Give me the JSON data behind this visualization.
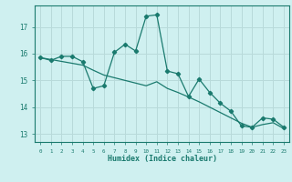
{
  "xlabel": "Humidex (Indice chaleur)",
  "bg_color": "#cff0f0",
  "grid_color": "#b8dada",
  "line_color": "#1a7a6e",
  "xlim": [
    -0.5,
    23.5
  ],
  "ylim": [
    12.7,
    17.8
  ],
  "x_ticks": [
    0,
    1,
    2,
    3,
    4,
    5,
    6,
    7,
    8,
    9,
    10,
    11,
    12,
    13,
    14,
    15,
    16,
    17,
    18,
    19,
    20,
    21,
    22,
    23
  ],
  "y_ticks": [
    13,
    14,
    15,
    16,
    17
  ],
  "line1_x": [
    0,
    1,
    2,
    3,
    4,
    5,
    6,
    7,
    8,
    9,
    10,
    11,
    12,
    13,
    14,
    15,
    16,
    17,
    18,
    19,
    20,
    21,
    22,
    23
  ],
  "line1_y": [
    15.85,
    15.75,
    15.9,
    15.9,
    15.7,
    14.7,
    14.8,
    16.05,
    16.35,
    16.1,
    17.4,
    17.45,
    15.35,
    15.25,
    14.4,
    15.05,
    14.55,
    14.15,
    13.85,
    13.3,
    13.25,
    13.6,
    13.55,
    13.25
  ],
  "line2_x": [
    0,
    1,
    2,
    3,
    4,
    5,
    6,
    7,
    8,
    9,
    10,
    11,
    12,
    13,
    14,
    15,
    16,
    17,
    18,
    19,
    20,
    21,
    22,
    23
  ],
  "line2_y": [
    15.85,
    15.78,
    15.71,
    15.64,
    15.57,
    15.38,
    15.2,
    15.1,
    15.0,
    14.9,
    14.8,
    14.95,
    14.7,
    14.55,
    14.38,
    14.2,
    14.0,
    13.8,
    13.6,
    13.4,
    13.25,
    13.35,
    13.42,
    13.2
  ]
}
